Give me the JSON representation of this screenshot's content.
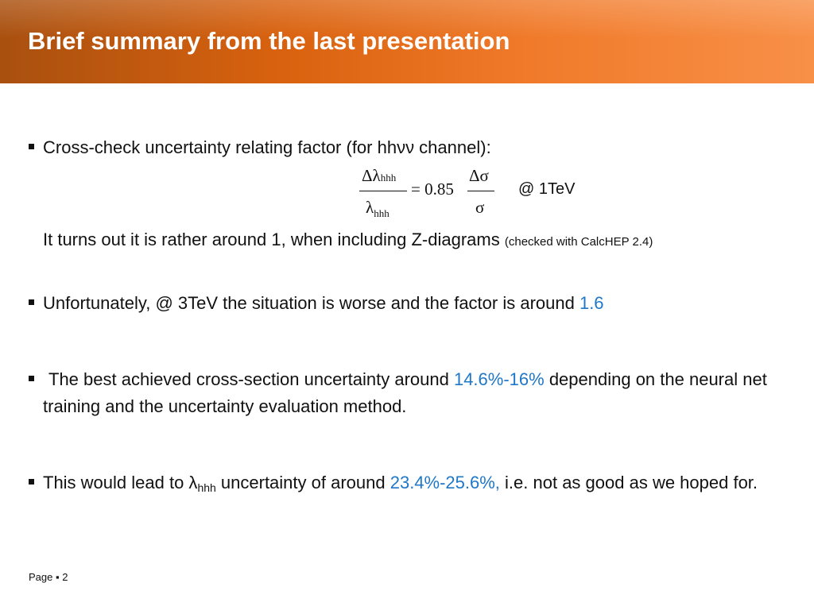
{
  "header": {
    "title": "Brief summary from the last presentation"
  },
  "bullets": [
    {
      "parts": [
        "Cross-check uncertainty relating factor (for hhνν channel):"
      ]
    },
    {
      "parts": [
        "Unfortunately, @ 3TeV the situation is worse and the factor is around ",
        "1.6"
      ]
    },
    {
      "parts": [
        "The best achieved cross-section uncertainty around ",
        "14.6%-16%",
        " depending on the neural net training and the uncertainty evaluation method."
      ]
    },
    {
      "parts": [
        "This would lead to λ",
        "hhh",
        " uncertainty of around ",
        "23.4%-25.6%,",
        " i.e. not as good as we hoped for."
      ]
    }
  ],
  "formula": {
    "numerator": "Δλ",
    "numerator_sub": "hhh",
    "denominator": "λ",
    "denominator_sub": "hhh",
    "equals": "= 0.85",
    "sigma_numerator": "Δσ",
    "sigma_denominator": "σ",
    "note": "@ 1TeV"
  },
  "note": {
    "text": "It turns out it is rather around 1, when including Z-diagrams",
    "small": "(checked with CalcHEP 2.4)"
  },
  "footer": {
    "text": "Page ▪ 2"
  }
}
